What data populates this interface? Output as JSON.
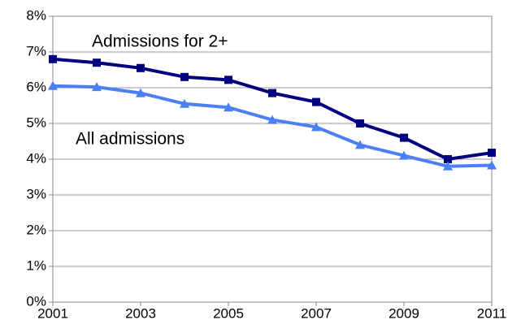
{
  "chart_data": {
    "type": "line",
    "x": [
      2001,
      2002,
      2003,
      2004,
      2005,
      2006,
      2007,
      2008,
      2009,
      2010,
      2011
    ],
    "series": [
      {
        "name": "Admissions for 2+",
        "color": "#000080",
        "marker": "square",
        "values": [
          6.8,
          6.7,
          6.55,
          6.3,
          6.22,
          5.85,
          5.6,
          5.0,
          4.6,
          4.0,
          4.18
        ]
      },
      {
        "name": "All admissions",
        "color": "#4a7ff5",
        "marker": "triangle",
        "values": [
          6.05,
          6.02,
          5.85,
          5.55,
          5.45,
          5.1,
          4.9,
          4.4,
          4.1,
          3.8,
          3.83
        ]
      }
    ],
    "xlim": [
      2001,
      2011
    ],
    "xticks": [
      2001,
      2003,
      2005,
      2007,
      2009,
      2011
    ],
    "ylim": [
      0,
      8
    ],
    "yticks": [
      {
        "value": 0,
        "label": "0%"
      },
      {
        "value": 1,
        "label": "1%"
      },
      {
        "value": 2,
        "label": "2%"
      },
      {
        "value": 3,
        "label": "3%"
      },
      {
        "value": 4,
        "label": "4%"
      },
      {
        "value": 5,
        "label": "5%"
      },
      {
        "value": 6,
        "label": "6%"
      },
      {
        "value": 7,
        "label": "7%"
      },
      {
        "value": 8,
        "label": "8%"
      }
    ],
    "grid": true
  }
}
